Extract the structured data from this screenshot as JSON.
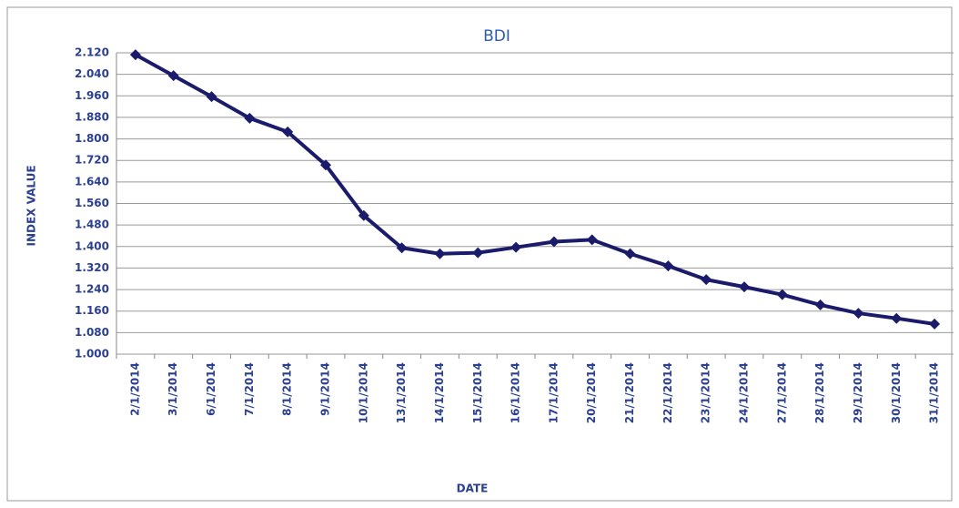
{
  "chart_data": {
    "type": "line",
    "title": "BDI",
    "x_label": "DATE",
    "y_label": "INDEX VALUE",
    "categories": [
      "2/1/2014",
      "3/1/2014",
      "6/1/2014",
      "7/1/2014",
      "8/1/2014",
      "9/1/2014",
      "10/1/2014",
      "13/1/2014",
      "14/1/2014",
      "15/1/2014",
      "16/1/2014",
      "17/1/2014",
      "20/1/2014",
      "21/1/2014",
      "22/1/2014",
      "23/1/2014",
      "24/1/2014",
      "27/1/2014",
      "28/1/2014",
      "29/1/2014",
      "30/1/2014",
      "31/1/2014"
    ],
    "values": [
      2113,
      2035,
      1957,
      1877,
      1826,
      1703,
      1515,
      1395,
      1373,
      1377,
      1397,
      1418,
      1425,
      1373,
      1328,
      1277,
      1250,
      1221,
      1183,
      1152,
      1133,
      1112
    ],
    "color": "#1b1b6b",
    "ylim": [
      1000,
      2120
    ],
    "yticks": [
      {
        "value": 1000,
        "label": "1.000"
      },
      {
        "value": 1080,
        "label": "1.080"
      },
      {
        "value": 1160,
        "label": "1.160"
      },
      {
        "value": 1240,
        "label": "1.240"
      },
      {
        "value": 1320,
        "label": "1.320"
      },
      {
        "value": 1400,
        "label": "1.400"
      },
      {
        "value": 1480,
        "label": "1.480"
      },
      {
        "value": 1560,
        "label": "1.560"
      },
      {
        "value": 1640,
        "label": "1.640"
      },
      {
        "value": 1720,
        "label": "1.720"
      },
      {
        "value": 1800,
        "label": "1.800"
      },
      {
        "value": 1880,
        "label": "1.880"
      },
      {
        "value": 1960,
        "label": "1.960"
      },
      {
        "value": 2040,
        "label": "2.040"
      },
      {
        "value": 2120,
        "label": "2.120"
      }
    ],
    "grid": true
  }
}
